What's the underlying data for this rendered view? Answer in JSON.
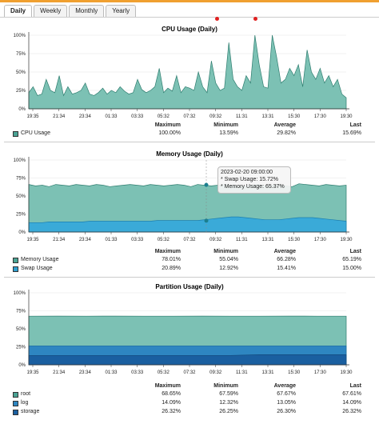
{
  "tabs": [
    "Daily",
    "Weekly",
    "Monthly",
    "Yearly"
  ],
  "x_ticks": [
    "19:35",
    "21:34",
    "23:34",
    "01:33",
    "03:33",
    "05:32",
    "07:32",
    "09:32",
    "11:31",
    "13:31",
    "15:30",
    "17:30",
    "19:30"
  ],
  "y_ticks": [
    "100%",
    "75%",
    "50%",
    "25%",
    "0%"
  ],
  "stat_headers": {
    "max": "Maximum",
    "min": "Minimum",
    "avg": "Average",
    "last": "Last"
  },
  "charts": [
    {
      "title": "CPU Usage (Daily)",
      "rows": [
        {
          "label": "CPU Usage",
          "color": "#4aa394",
          "max": "100.00%",
          "min": "13.59%",
          "avg": "29.82%",
          "last": "15.69%"
        }
      ]
    },
    {
      "title": "Memory Usage (Daily)",
      "rows": [
        {
          "label": "Memory Usage",
          "color": "#4aa394",
          "max": "78.01%",
          "min": "55.04%",
          "avg": "66.28%",
          "last": "65.19%"
        },
        {
          "label": "Swap Usage",
          "color": "#2e9fd0",
          "max": "20.89%",
          "min": "12.92%",
          "avg": "15.41%",
          "last": "15.00%"
        }
      ]
    },
    {
      "title": "Partition Usage (Daily)",
      "rows": [
        {
          "label": "root",
          "color": "#4aa394",
          "max": "68.65%",
          "min": "67.59%",
          "avg": "67.67%",
          "last": "67.61%"
        },
        {
          "label": "log",
          "color": "#2e86c1",
          "max": "14.09%",
          "min": "12.32%",
          "avg": "13.05%",
          "last": "14.09%"
        },
        {
          "label": "storage",
          "color": "#1a5fa0",
          "max": "26.32%",
          "min": "26.25%",
          "avg": "26.30%",
          "last": "26.32%"
        }
      ]
    }
  ],
  "tooltip": {
    "time": "2023-02-20 09:00:00",
    "swap": "* Swap Usage: 15.72%",
    "memory": "* Memory Usage: 65.37%"
  },
  "chart_data": [
    {
      "type": "area",
      "title": "CPU Usage (Daily)",
      "ylim": [
        0,
        100
      ],
      "series": [
        {
          "name": "CPU Usage",
          "values": [
            22,
            30,
            18,
            20,
            40,
            25,
            22,
            45,
            18,
            30,
            20,
            22,
            25,
            35,
            20,
            18,
            22,
            28,
            20,
            25,
            22,
            30,
            24,
            20,
            22,
            40,
            26,
            22,
            25,
            30,
            55,
            22,
            28,
            24,
            45,
            22,
            30,
            28,
            25,
            50,
            30,
            22,
            65,
            35,
            25,
            28,
            90,
            40,
            30,
            25,
            45,
            35,
            100,
            60,
            30,
            28,
            100,
            70,
            35,
            40,
            55,
            45,
            60,
            30,
            80,
            50,
            40,
            55,
            35,
            45,
            30,
            40,
            20,
            15
          ]
        }
      ]
    },
    {
      "type": "area",
      "title": "Memory Usage (Daily)",
      "ylim": [
        0,
        100
      ],
      "series": [
        {
          "name": "Memory Usage",
          "values": [
            66,
            64,
            65,
            63,
            66,
            65,
            64,
            66,
            65,
            64,
            66,
            65,
            63,
            64,
            65,
            66,
            65,
            64,
            66,
            65,
            64,
            65,
            66,
            65,
            63,
            66,
            65,
            64,
            65,
            66,
            65,
            64,
            63,
            65,
            66,
            64,
            65,
            66,
            64,
            63,
            67,
            66,
            65,
            64,
            66,
            65,
            64,
            65
          ]
        },
        {
          "name": "Swap Usage",
          "values": [
            13,
            13,
            13,
            14,
            14,
            14,
            14,
            14,
            14,
            15,
            15,
            15,
            15,
            15,
            15,
            15,
            15,
            15,
            15,
            16,
            16,
            16,
            16,
            16,
            16,
            16,
            17,
            18,
            19,
            20,
            21,
            21,
            20,
            19,
            18,
            17,
            17,
            17,
            18,
            19,
            20,
            20,
            20,
            19,
            18,
            17,
            16,
            15
          ]
        }
      ]
    },
    {
      "type": "area",
      "title": "Partition Usage (Daily)",
      "ylim": [
        0,
        100
      ],
      "series": [
        {
          "name": "root",
          "values": [
            67.6,
            67.7,
            67.6,
            67.7,
            67.6,
            67.6,
            67.7,
            67.6,
            67.6,
            67.7,
            67.6,
            67.6
          ]
        },
        {
          "name": "storage",
          "values": [
            26.3,
            26.3,
            26.3,
            26.3,
            26.3,
            26.3,
            26.3,
            26.3,
            26.3,
            26.3,
            26.3,
            26.3
          ]
        },
        {
          "name": "log",
          "values": [
            13,
            13,
            13,
            13,
            13,
            13,
            13,
            13,
            14,
            14,
            14,
            14
          ]
        }
      ]
    }
  ]
}
